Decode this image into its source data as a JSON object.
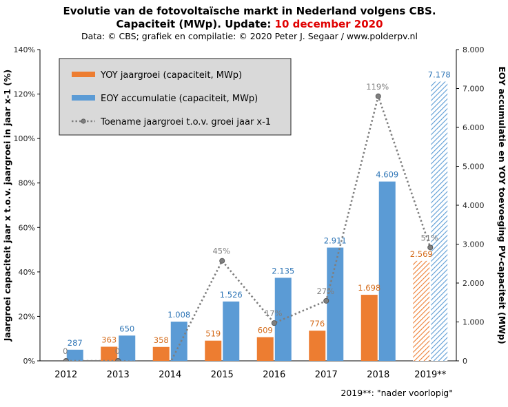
{
  "title_line1": "Evolutie van de fotovoltaïsche markt in Nederland volgens CBS.",
  "title_line2_prefix": "Capaciteit (MWp). Update: ",
  "title_line2_date": "10 december 2020",
  "subtitle": "Data: © CBS; grafiek en compilatie: © 2020 Peter J. Segaar / www.polderpv.nl",
  "footnote": "2019**: \"nader voorlopig\"",
  "colors": {
    "yoy": "#ed7d31",
    "eoy": "#5b9bd5",
    "line": "#7f7f7f",
    "red_text": "#e00000"
  },
  "chart_data": {
    "type": "bar",
    "categories": [
      "2012",
      "2013",
      "2014",
      "2015",
      "2016",
      "2017",
      "2018",
      "2019**"
    ],
    "y_left": {
      "label": "Jaargroei capaciteit jaar x t.o.v. jaargroei in jaar x-1 (%)",
      "range": [
        0,
        140
      ],
      "ticks": [
        "0%",
        "20%",
        "40%",
        "60%",
        "80%",
        "100%",
        "120%",
        "140%"
      ]
    },
    "y_right": {
      "label": "EOY accumulatie en YOY toevoeging PV-capaciteit (MWp)",
      "range": [
        0,
        8000
      ],
      "ticks": [
        "0",
        "1.000",
        "2.000",
        "3.000",
        "4.000",
        "5.000",
        "6.000",
        "7.000",
        "8.000"
      ]
    },
    "series": [
      {
        "name": "YOY jaargroei (capaciteit, MWp)",
        "type": "bar",
        "axis": "right",
        "values": [
          null,
          363,
          358,
          519,
          609,
          776,
          1698,
          2569
        ],
        "labels": [
          "",
          "363",
          "358",
          "519",
          "609",
          "776",
          "1.698",
          "2.569"
        ]
      },
      {
        "name": "EOY accumulatie (capaciteit, MWp)",
        "type": "bar",
        "axis": "right",
        "values": [
          287,
          650,
          1008,
          1526,
          2135,
          2911,
          4609,
          7178
        ],
        "labels": [
          "287",
          "650",
          "1.008",
          "1.526",
          "2.135",
          "2.911",
          "4.609",
          "7.178"
        ]
      },
      {
        "name": "Toename jaargroei t.o.v. groei jaar x-1",
        "type": "line",
        "axis": "left",
        "values": [
          0,
          0,
          -1,
          45,
          17,
          27,
          119,
          51
        ],
        "labels": [
          "0",
          "0",
          "",
          "45%",
          "17%",
          "27%",
          "119%",
          "51%"
        ]
      }
    ],
    "hatched_category": "2019**",
    "legend": "top-left",
    "grid": false
  }
}
